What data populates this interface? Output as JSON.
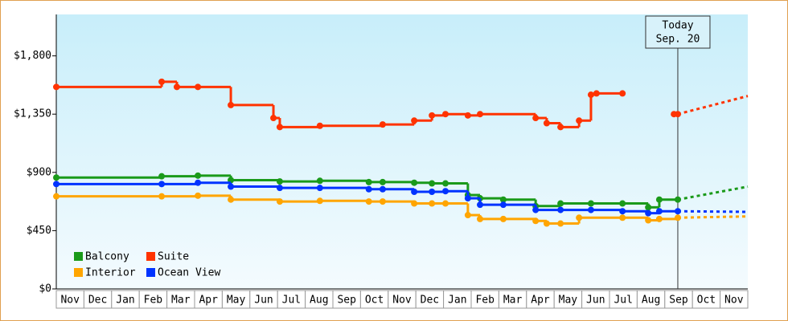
{
  "chart_data": {
    "type": "step-line",
    "categories": [
      "Nov",
      "Dec",
      "Jan",
      "Feb",
      "Mar",
      "Apr",
      "May",
      "Jun",
      "Jul",
      "Aug",
      "Sep",
      "Oct",
      "Nov",
      "Dec",
      "Jan",
      "Feb",
      "Mar",
      "Apr",
      "May",
      "Jun",
      "Jul",
      "Aug",
      "Sep",
      "Oct",
      "Nov"
    ],
    "xlim": [
      0,
      25
    ],
    "ylim": [
      0,
      2120
    ],
    "yticks": [
      {
        "value": 0,
        "label": "$0"
      },
      {
        "value": 450,
        "label": "$450"
      },
      {
        "value": 900,
        "label": "$900"
      },
      {
        "value": 1350,
        "label": "$1,350"
      },
      {
        "value": 1800,
        "label": "$1,800"
      }
    ],
    "legend": "lower left",
    "series": [
      {
        "name": "Balcony",
        "color": "#1a9a1a",
        "x": [
          0,
          3.81,
          5.12,
          6.31,
          8.08,
          9.53,
          11.3,
          11.8,
          12.94,
          13.58,
          14.07,
          14.88,
          15.32,
          16.16,
          17.33,
          18.23,
          19.33,
          20.47,
          21.4,
          21.8,
          22.47
        ],
        "values": [
          860,
          870,
          875,
          840,
          830,
          835,
          825,
          825,
          820,
          815,
          815,
          725,
          700,
          690,
          640,
          660,
          660,
          660,
          630,
          690,
          690
        ],
        "forecast": {
          "x": [
            22.47,
            25
          ],
          "values": [
            690,
            790
          ]
        }
      },
      {
        "name": "Suite",
        "color": "#ff3300",
        "x": [
          0,
          3.81,
          4.36,
          5.12,
          6.31,
          7.85,
          8.08,
          9.53,
          11.8,
          12.94,
          13.58,
          14.07,
          14.88,
          15.32,
          17.33,
          17.73,
          18.23,
          18.9,
          19.33,
          19.53,
          20.47,
          21,
          22.33,
          22.47
        ],
        "values": [
          1560,
          1600,
          1560,
          1560,
          1420,
          1320,
          1250,
          1260,
          1270,
          1300,
          1340,
          1350,
          1340,
          1350,
          1320,
          1280,
          1250,
          1300,
          1500,
          1510,
          1510,
          null,
          1350,
          1350
        ],
        "forecast": {
          "x": [
            22.47,
            25
          ],
          "values": [
            1350,
            1490
          ]
        }
      },
      {
        "name": "Interior",
        "color": "#ffa500",
        "x": [
          0,
          3.81,
          5.12,
          6.31,
          8.08,
          9.53,
          11.3,
          11.8,
          12.94,
          13.58,
          14.07,
          14.88,
          15.32,
          16.16,
          17.33,
          17.73,
          18.23,
          18.9,
          20.47,
          21.4,
          21.8,
          22.47
        ],
        "values": [
          715,
          715,
          720,
          690,
          675,
          680,
          675,
          675,
          660,
          660,
          660,
          570,
          540,
          540,
          525,
          505,
          505,
          550,
          550,
          530,
          540,
          550
        ],
        "forecast": {
          "x": [
            22.47,
            25
          ],
          "values": [
            550,
            560
          ]
        }
      },
      {
        "name": "Ocean View",
        "color": "#0033ff",
        "x": [
          0,
          3.81,
          5.12,
          6.31,
          8.08,
          9.53,
          11.3,
          11.8,
          12.94,
          13.58,
          14.07,
          14.88,
          15.32,
          16.16,
          17.33,
          18.23,
          19.33,
          20.47,
          21.4,
          21.8,
          22.47
        ],
        "values": [
          810,
          810,
          820,
          790,
          780,
          780,
          770,
          770,
          750,
          750,
          755,
          700,
          650,
          650,
          610,
          610,
          610,
          600,
          585,
          600,
          600
        ],
        "forecast": {
          "x": [
            22.47,
            25
          ],
          "values": [
            600,
            595
          ]
        }
      }
    ],
    "annotation": {
      "x": 22.47,
      "text": [
        "Today",
        "Sep. 20"
      ]
    }
  }
}
